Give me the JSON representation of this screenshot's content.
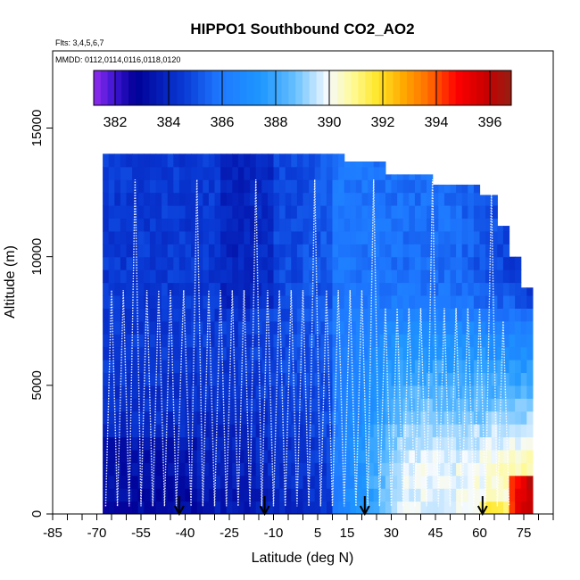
{
  "chart_data": {
    "type": "heatmap",
    "title": "HIPPO1 Southbound CO2_AO2",
    "flights_note": "Flts: 3,4,5,6,7",
    "dates_note": "MMDD: 0112,0114,0116,0118,0120",
    "xlabel": "Latitude (deg N)",
    "ylabel": "Altitude (m)",
    "xlim": [
      -85,
      85
    ],
    "ylim": [
      0,
      18000
    ],
    "x_ticks": [
      -85,
      -70,
      -55,
      -40,
      -25,
      -10,
      5,
      15,
      30,
      45,
      60,
      75
    ],
    "x_tick_labels": [
      "-85",
      "-70",
      "-55",
      "-40",
      "-25",
      "-10",
      "5",
      "15",
      "30",
      "45",
      "60",
      "75"
    ],
    "y_ticks": [
      0,
      5000,
      10000,
      15000
    ],
    "y_tick_labels": [
      "0",
      "5000",
      "10000",
      "15000"
    ],
    "colorbar": {
      "min": 381.2,
      "max": 396.8,
      "ticks": [
        382,
        384,
        386,
        388,
        390,
        392,
        394,
        396
      ],
      "tick_labels": [
        "382",
        "384",
        "386",
        "388",
        "390",
        "392",
        "394",
        "396"
      ]
    },
    "flight_change_arrows_lat": [
      -42,
      -13,
      21,
      61
    ],
    "lat_range_observed": [
      -68,
      78
    ],
    "max_altitude_observed": 14000,
    "co2_field_summary": [
      {
        "region": "southern hemisphere upper troposphere",
        "co2_ppm": 384.5
      },
      {
        "region": "southern hemisphere lower troposphere",
        "co2_ppm": 383.5
      },
      {
        "region": "tropics",
        "co2_ppm": 386
      },
      {
        "region": "northern mid-latitude lower troposphere",
        "co2_ppm": 389.5
      },
      {
        "region": "arctic boundary layer",
        "co2_ppm": 394
      }
    ]
  }
}
